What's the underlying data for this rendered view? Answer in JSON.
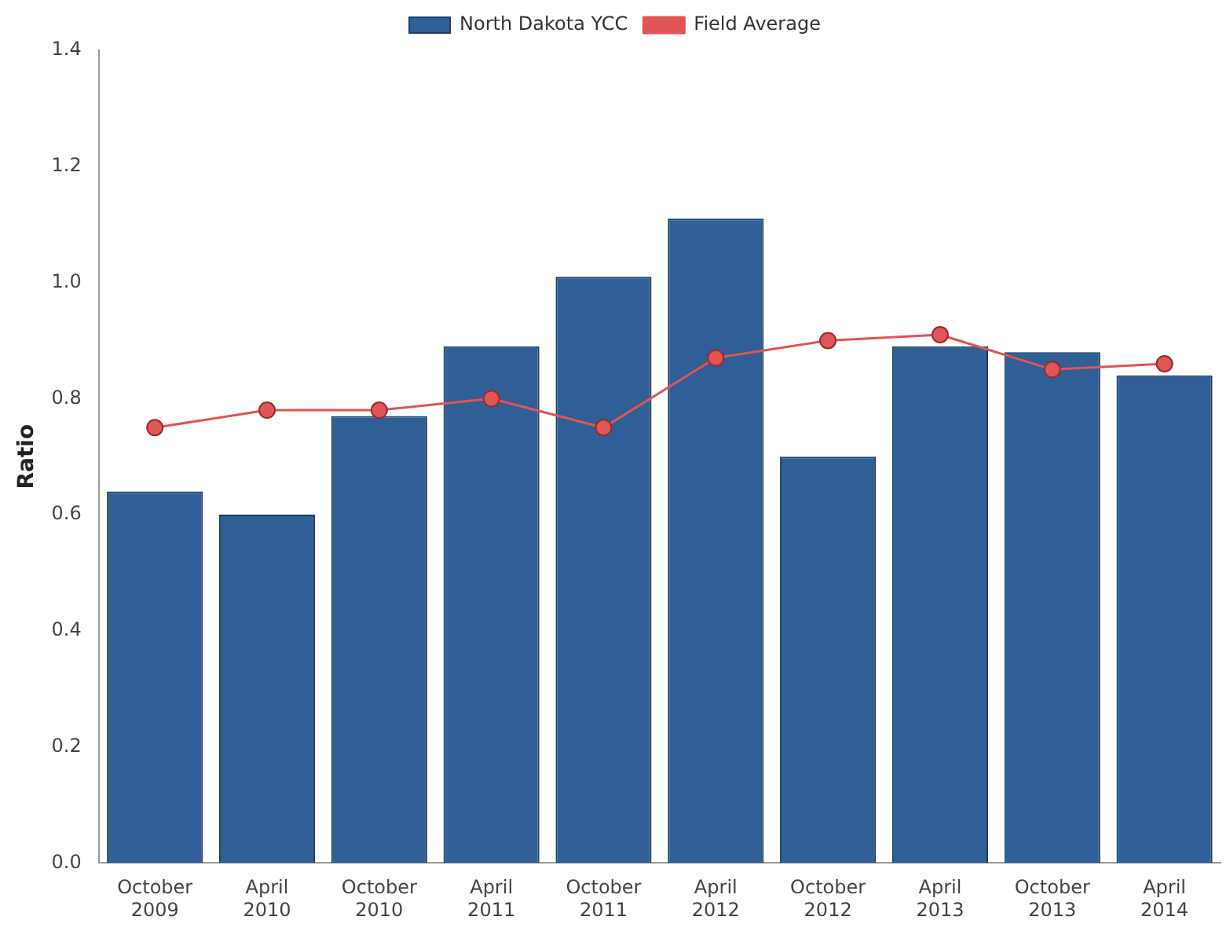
{
  "chart_data": {
    "type": "bar",
    "ylabel": "Ratio",
    "categories": [
      "October 2009",
      "April 2010",
      "October 2010",
      "April 2011",
      "October 2011",
      "April 2012",
      "October 2012",
      "April 2013",
      "October 2013",
      "April 2014"
    ],
    "series": [
      {
        "name": "North Dakota YCC",
        "color": "#2f5f96",
        "values": [
          0.64,
          0.6,
          0.77,
          0.89,
          1.01,
          1.11,
          0.7,
          0.89,
          0.88,
          0.84
        ]
      },
      {
        "name": "Field Average",
        "type": "line",
        "color": "#e05555",
        "marker": "circle",
        "values": [
          0.75,
          0.78,
          0.78,
          0.8,
          0.75,
          0.87,
          0.9,
          0.91,
          0.85,
          0.86
        ]
      }
    ],
    "ylim": [
      0,
      1.4
    ],
    "yticks": [
      {
        "value": 0,
        "label": "0.0"
      },
      {
        "value": 0.2,
        "label": "0.2"
      },
      {
        "value": 0.4,
        "label": "0.4"
      },
      {
        "value": 0.6,
        "label": "0.6"
      },
      {
        "value": 0.8,
        "label": "0.8"
      },
      {
        "value": 1,
        "label": "1.0"
      },
      {
        "value": 1.2,
        "label": "1.2"
      },
      {
        "value": 1.4,
        "label": "1.4"
      }
    ],
    "grid": false,
    "legend": "top"
  }
}
